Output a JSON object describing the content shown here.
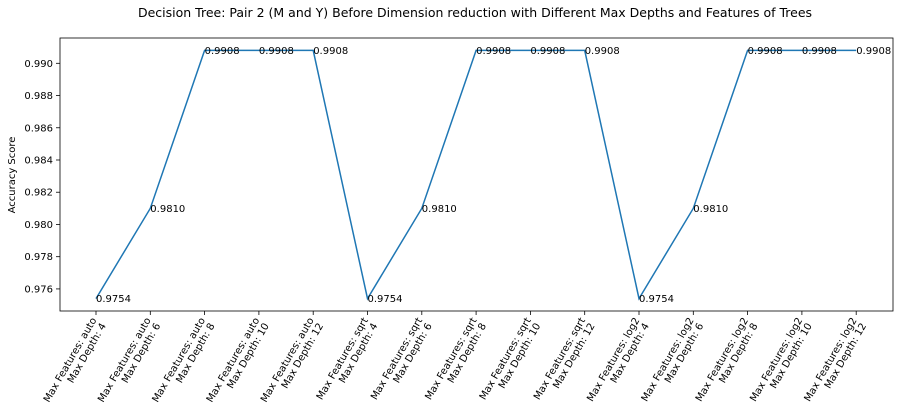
{
  "chart_data": {
    "type": "line",
    "title": "Decision Tree: Pair 2 (M and Y) Before Dimension reduction with Different Max Depths and Features of Trees",
    "xlabel": "",
    "ylabel": "Accuracy Score",
    "categories": [
      [
        "Max Features: auto",
        "Max Depth: 4"
      ],
      [
        "Max Features: auto",
        "Max Depth: 6"
      ],
      [
        "Max Features: auto",
        "Max Depth: 8"
      ],
      [
        "Max Features: auto",
        "Max Depth: 10"
      ],
      [
        "Max Features: auto",
        "Max Depth: 12"
      ],
      [
        "Max Features: sqrt",
        "Max Depth: 4"
      ],
      [
        "Max Features: sqrt",
        "Max Depth: 6"
      ],
      [
        "Max Features: sqrt",
        "Max Depth: 8"
      ],
      [
        "Max Features: sqrt",
        "Max Depth: 10"
      ],
      [
        "Max Features: sqrt",
        "Max Depth: 12"
      ],
      [
        "Max Features: log2",
        "Max Depth: 4"
      ],
      [
        "Max Features: log2",
        "Max Depth: 6"
      ],
      [
        "Max Features: log2",
        "Max Depth: 8"
      ],
      [
        "Max Features: log2",
        "Max Depth: 10"
      ],
      [
        "Max Features: log2",
        "Max Depth: 12"
      ]
    ],
    "values": [
      0.9754,
      0.981,
      0.9908,
      0.9908,
      0.9908,
      0.9754,
      0.981,
      0.9908,
      0.9908,
      0.9908,
      0.9754,
      0.981,
      0.9908,
      0.9908,
      0.9908
    ],
    "data_labels": [
      "0.9754",
      "0.9810",
      "0.9908",
      "0.9908",
      "0.9908",
      "0.9754",
      "0.9810",
      "0.9908",
      "0.9908",
      "0.9908",
      "0.9754",
      "0.9810",
      "0.9908",
      "0.9908",
      "0.9908"
    ],
    "yticks": [
      "0.976",
      "0.978",
      "0.980",
      "0.982",
      "0.984",
      "0.986",
      "0.988",
      "0.990"
    ],
    "ytick_values": [
      0.976,
      0.978,
      0.98,
      0.982,
      0.984,
      0.986,
      0.988,
      0.99
    ],
    "ylim": [
      0.97463,
      0.99157
    ],
    "grid": false,
    "line_color": "#1f77b4"
  }
}
